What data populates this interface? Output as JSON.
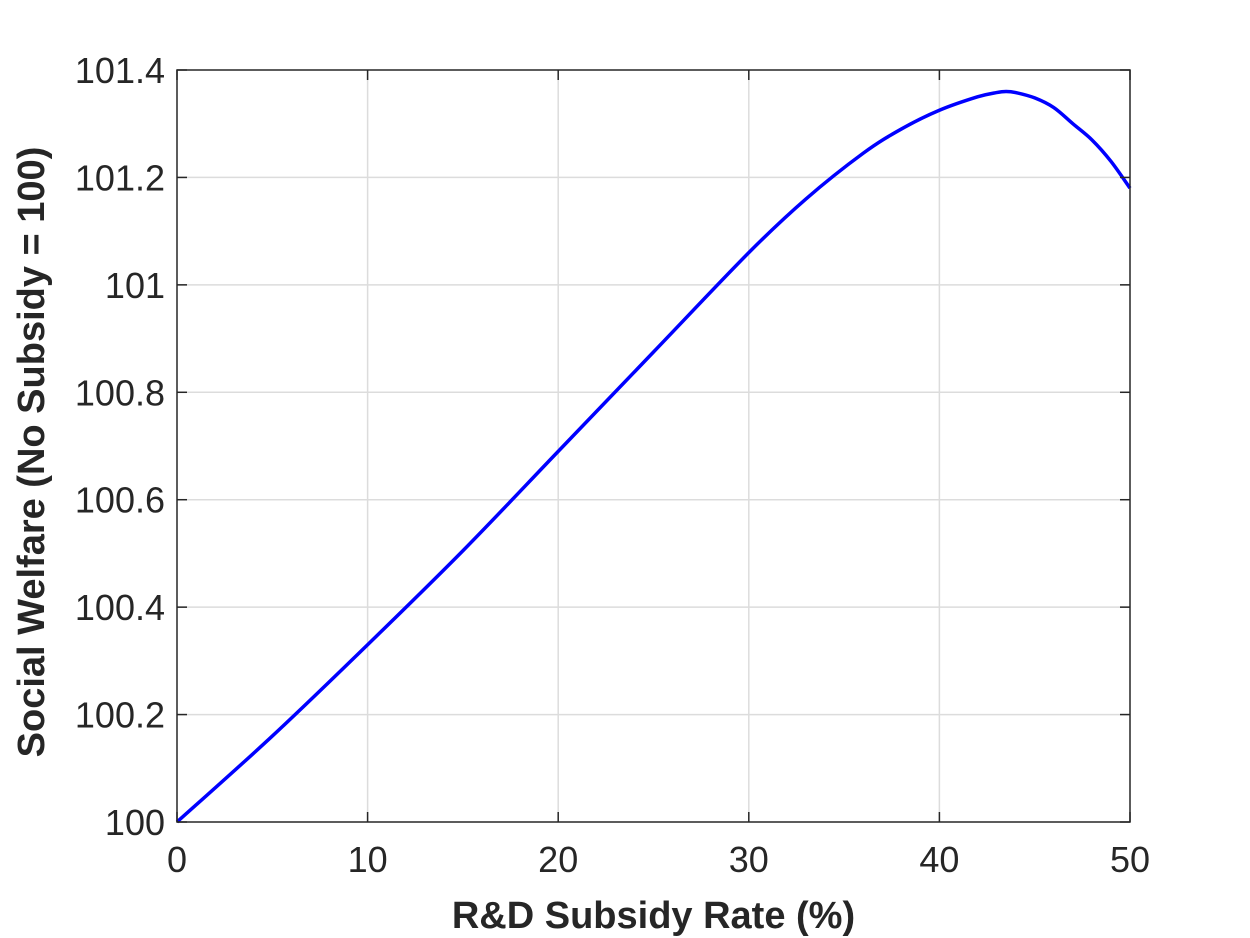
{
  "chart_data": {
    "type": "line",
    "title": "",
    "xlabel": "R&D Subsidy Rate (%)",
    "ylabel": "Social Welfare (No Subsidy = 100)",
    "xlim": [
      0,
      50
    ],
    "ylim": [
      100,
      101.4
    ],
    "xticks": [
      0,
      10,
      20,
      30,
      40,
      50
    ],
    "xtick_labels": [
      "0",
      "10",
      "20",
      "30",
      "40",
      "50"
    ],
    "yticks": [
      100,
      100.2,
      100.4,
      100.6,
      100.8,
      101,
      101.2,
      101.4
    ],
    "ytick_labels": [
      "100",
      "100.2",
      "100.4",
      "100.6",
      "100.8",
      "101",
      "101.2",
      "101.4"
    ],
    "grid": true,
    "legend": false,
    "colors": {
      "line": "#0000ff",
      "axis": "#262626",
      "grid": "#dcdcdc"
    },
    "series": [
      {
        "x": [
          0,
          5,
          10,
          15,
          20,
          25,
          30,
          33,
          36,
          38,
          40,
          42,
          43,
          43.5,
          44,
          45,
          46,
          47,
          48,
          49,
          50
        ],
        "y": [
          100,
          100.16,
          100.33,
          100.505,
          100.69,
          100.875,
          101.06,
          101.16,
          101.245,
          101.29,
          101.325,
          101.35,
          101.358,
          101.36,
          101.358,
          101.348,
          101.33,
          101.3,
          101.27,
          101.23,
          101.18
        ]
      }
    ]
  }
}
